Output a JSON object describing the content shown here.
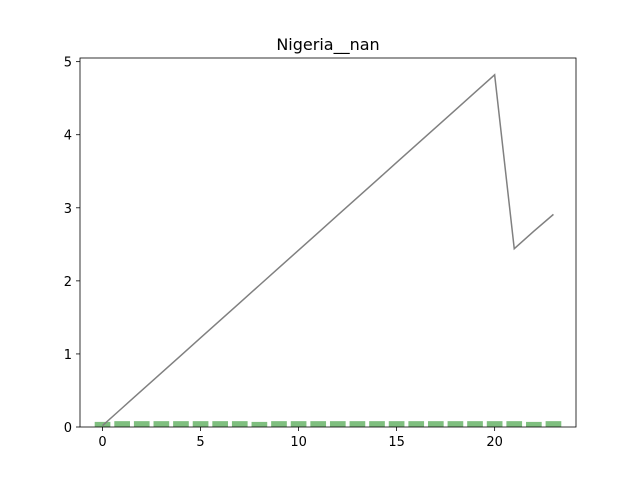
{
  "chart_data": {
    "type": "bar+line",
    "title": "Nigeria__nan",
    "xlabel": "",
    "ylabel": "",
    "xlim": [
      -1.15,
      24.15
    ],
    "ylim": [
      0,
      5.05
    ],
    "x_ticks": [
      0,
      5,
      10,
      15,
      20
    ],
    "y_ticks": [
      0,
      1,
      2,
      3,
      4,
      5
    ],
    "x": [
      0,
      1,
      2,
      3,
      4,
      5,
      6,
      7,
      8,
      9,
      10,
      11,
      12,
      13,
      14,
      15,
      16,
      17,
      18,
      19,
      20,
      21,
      22,
      23
    ],
    "series": [
      {
        "kind": "bar",
        "color": "#7fbf7f",
        "values": [
          0.07,
          0.08,
          0.08,
          0.08,
          0.08,
          0.08,
          0.08,
          0.08,
          0.07,
          0.08,
          0.08,
          0.08,
          0.08,
          0.08,
          0.08,
          0.08,
          0.08,
          0.08,
          0.08,
          0.08,
          0.08,
          0.08,
          0.07,
          0.08
        ]
      },
      {
        "kind": "line",
        "color": "#808080",
        "values": [
          0.02,
          0.26,
          0.5,
          0.74,
          0.98,
          1.22,
          1.46,
          1.7,
          1.94,
          2.18,
          2.42,
          2.66,
          2.9,
          3.14,
          3.38,
          3.62,
          3.86,
          4.1,
          4.34,
          4.58,
          4.82,
          2.44,
          2.68,
          2.91
        ]
      }
    ],
    "grid": false,
    "legend": "none"
  }
}
